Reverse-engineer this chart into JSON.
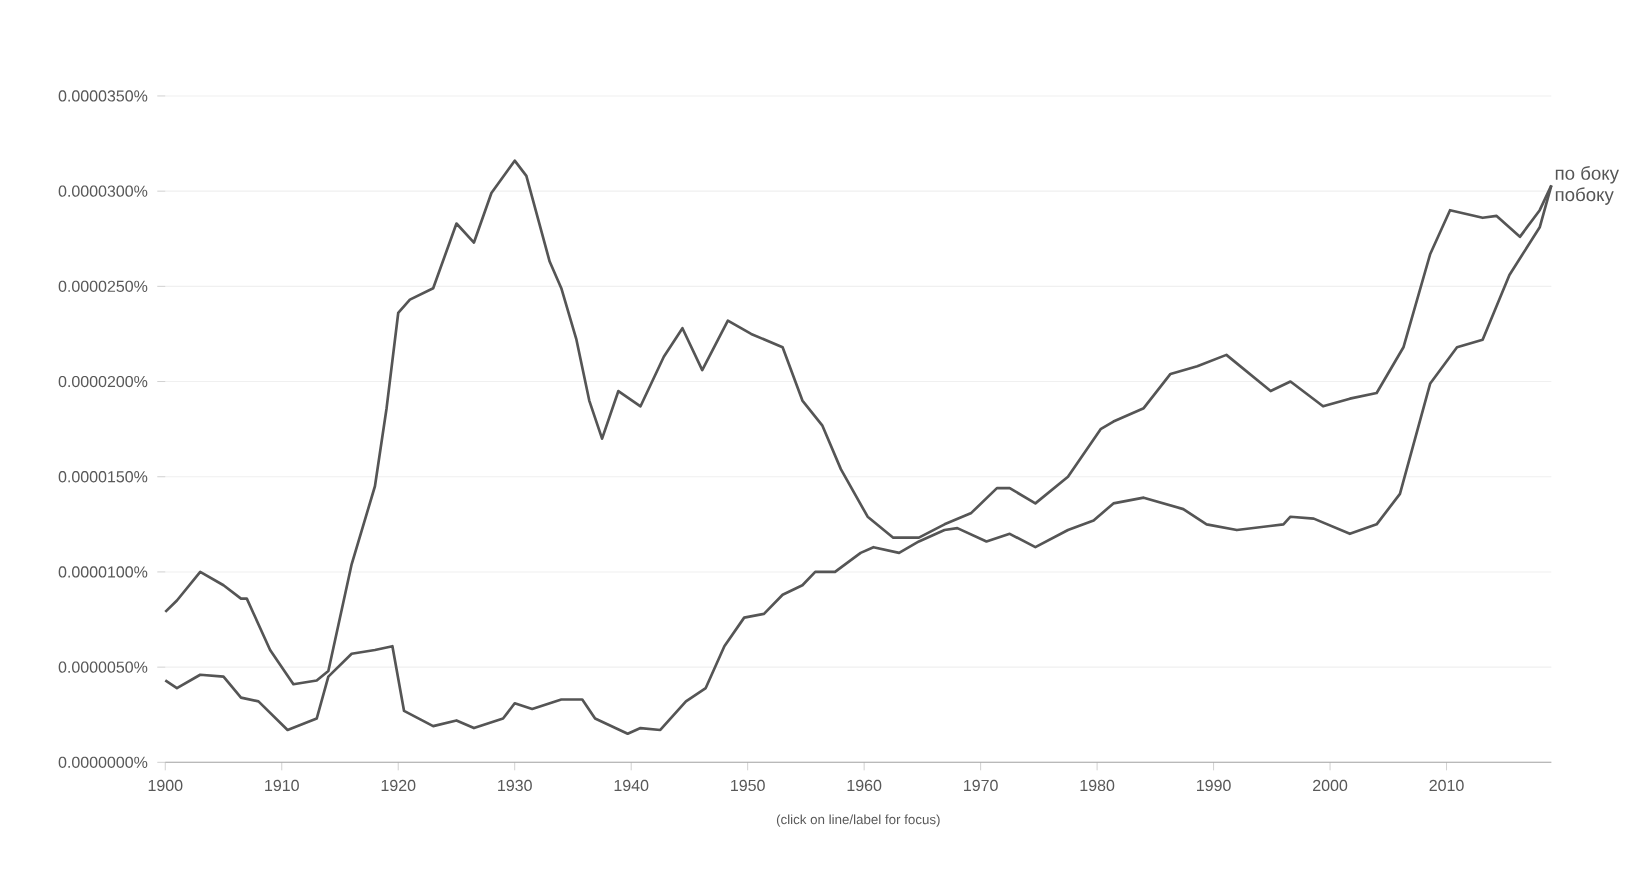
{
  "chart_data": {
    "type": "line",
    "x": [
      1900,
      1901,
      1903,
      1905,
      1906.5,
      1908,
      1910.5,
      1913,
      1914,
      1916,
      1918,
      1919.5,
      1920.5,
      1923,
      1925,
      1926.5,
      1929,
      1930,
      1931.5,
      1934,
      1935.8,
      1936.9,
      1939.7,
      1940.8,
      1942.5,
      1944.7,
      1946.4,
      1948.0,
      1949.7,
      1951.4,
      1953.0,
      1954.7,
      1955.8,
      1957.5,
      1959.7,
      1960.8,
      1963.0,
      1964.7,
      1966.9,
      1968,
      1970.5,
      1972.5,
      1974.7,
      1977.5,
      1979.7,
      1981.4,
      1984,
      1987.4,
      1989.4,
      1992,
      1996,
      1996.6,
      1998.6,
      2001.7,
      2004,
      2006,
      2008.6,
      2010.9,
      2013.1,
      2015.4,
      2018,
      2019
    ],
    "series": [
      {
        "name": "по боку",
        "color": "#555555",
        "values": [
          4.3e-06,
          3.9e-06,
          4.6e-06,
          4.5e-06,
          3.4e-06,
          3.2e-06,
          1.7e-06,
          2.3e-06,
          4.5e-06,
          5.7e-06,
          5.9e-06,
          6.1e-06,
          2.7e-06,
          1.9e-06,
          2.2e-06,
          1.8e-06,
          2.3e-06,
          3.1e-06,
          2.8e-06,
          3.3e-06,
          3.3e-06,
          2.3e-06,
          1.5e-06,
          1.8e-06,
          1.7e-06,
          3.2e-06,
          3.9e-06,
          6.1e-06,
          7.6e-06,
          7.8e-06,
          8.8e-06,
          9.3e-06,
          1e-05,
          1e-05,
          1.1e-05,
          1.13e-05,
          1.1e-05,
          1.16e-05,
          1.22e-05,
          1.23e-05,
          1.16e-05,
          1.2e-05,
          1.13e-05,
          1.22e-05,
          1.27e-05,
          1.36e-05,
          1.39e-05,
          1.33e-05,
          1.25e-05,
          1.22e-05,
          1.25e-05,
          1.29e-05,
          1.28e-05,
          1.2e-05,
          1.25e-05,
          1.41e-05,
          1.99e-05,
          2.18e-05,
          2.22e-05,
          2.56e-05,
          2.81e-05,
          3.03e-05
        ]
      },
      {
        "name": "побоку",
        "color": "#555555",
        "x": [
          1900,
          1901,
          1903,
          1905,
          1906.5,
          1907,
          1909,
          1911,
          1913,
          1914,
          1916,
          1918,
          1919,
          1920,
          1921,
          1923,
          1925,
          1926.5,
          1928,
          1930,
          1931,
          1933,
          1934,
          1935.3,
          1936.4,
          1937.5,
          1938.9,
          1940.8,
          1942.8,
          1944.4,
          1946.1,
          1948.3,
          1950.3,
          1953.0,
          1954.7,
          1956.4,
          1958.0,
          1960.3,
          1962.5,
          1964.7,
          1966.9,
          1969.2,
          1971.4,
          1972.5,
          1974.7,
          1977.5,
          1980.3,
          1981.4,
          1984,
          1986.3,
          1988.6,
          1991.1,
          1994.9,
          1996.6,
          1999.4,
          2001.7,
          2004,
          2006.3,
          2008.6,
          2010.3,
          2013.1,
          2014.3,
          2016.3,
          2018,
          2019
        ],
        "values": [
          7.9e-06,
          8.5e-06,
          1e-05,
          9.3e-06,
          8.6e-06,
          8.6e-06,
          5.9e-06,
          4.1e-06,
          4.3e-06,
          4.8e-06,
          1.04e-05,
          1.45e-05,
          1.86e-05,
          2.36e-05,
          2.43e-05,
          2.49e-05,
          2.83e-05,
          2.73e-05,
          2.99e-05,
          3.16e-05,
          3.08e-05,
          2.63e-05,
          2.49e-05,
          2.22e-05,
          1.9e-05,
          1.7e-05,
          1.95e-05,
          1.87e-05,
          2.13e-05,
          2.28e-05,
          2.06e-05,
          2.32e-05,
          2.25e-05,
          2.18e-05,
          1.9e-05,
          1.77e-05,
          1.54e-05,
          1.29e-05,
          1.18e-05,
          1.18e-05,
          1.25e-05,
          1.31e-05,
          1.44e-05,
          1.44e-05,
          1.36e-05,
          1.5e-05,
          1.75e-05,
          1.79e-05,
          1.86e-05,
          2.04e-05,
          2.08e-05,
          2.14e-05,
          1.95e-05,
          2e-05,
          1.87e-05,
          1.91e-05,
          1.94e-05,
          2.18e-05,
          2.67e-05,
          2.9e-05,
          2.86e-05,
          2.87e-05,
          2.76e-05,
          2.9e-05,
          3.03e-05
        ]
      }
    ],
    "xlim": [
      1900,
      2019
    ],
    "xticks": [
      1900,
      1910,
      1920,
      1930,
      1940,
      1950,
      1960,
      1970,
      1980,
      1990,
      2000,
      2010
    ],
    "ylim": [
      0,
      3.5e-05
    ],
    "yticks": [
      {
        "value": 0,
        "label": "0.0000000%"
      },
      {
        "value": 5e-06,
        "label": "0.0000050%"
      },
      {
        "value": 1e-05,
        "label": "0.0000100%"
      },
      {
        "value": 1.5e-05,
        "label": "0.0000150%"
      },
      {
        "value": 2e-05,
        "label": "0.0000200%"
      },
      {
        "value": 2.5e-05,
        "label": "0.0000250%"
      },
      {
        "value": 3e-05,
        "label": "0.0000300%"
      },
      {
        "value": 3.5e-05,
        "label": "0.0000350%"
      }
    ],
    "grid": "y",
    "legend": false,
    "marker": "none",
    "line_style": "solid",
    "annotations": [
      "(click on line/label for focus)"
    ]
  }
}
